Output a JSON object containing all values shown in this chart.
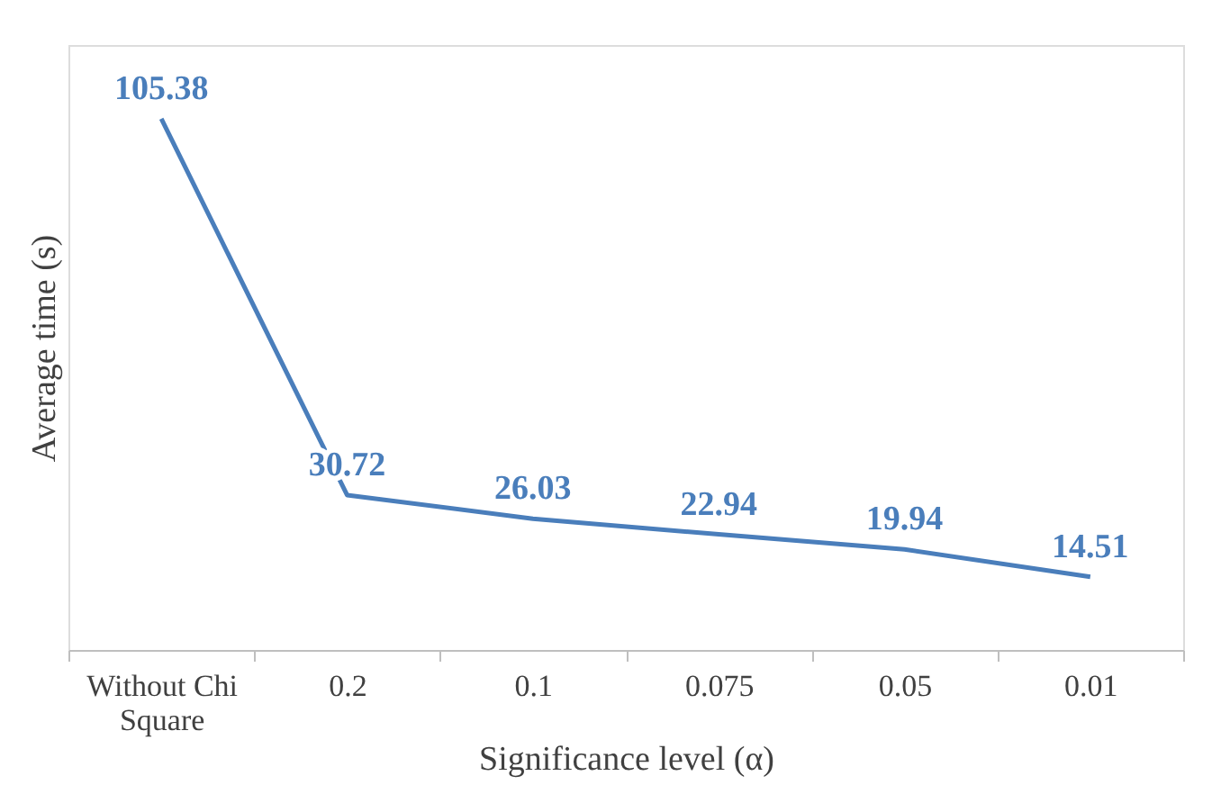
{
  "chart_data": {
    "type": "line",
    "xlabel": "Significance level (α)",
    "ylabel": "Average time (s)",
    "categories": [
      "Without Chi Square",
      "0.2",
      "0.1",
      "0.075",
      "0.05",
      "0.01"
    ],
    "series": [
      {
        "color": "#4a7ebb",
        "values": [
          105.38,
          30.72,
          26.03,
          22.94,
          19.94,
          14.51
        ]
      }
    ],
    "ylim": [
      0,
      120
    ],
    "data_labels": true,
    "tick_labels": "x",
    "grid": false,
    "marker": "none",
    "line_style": "solid"
  }
}
